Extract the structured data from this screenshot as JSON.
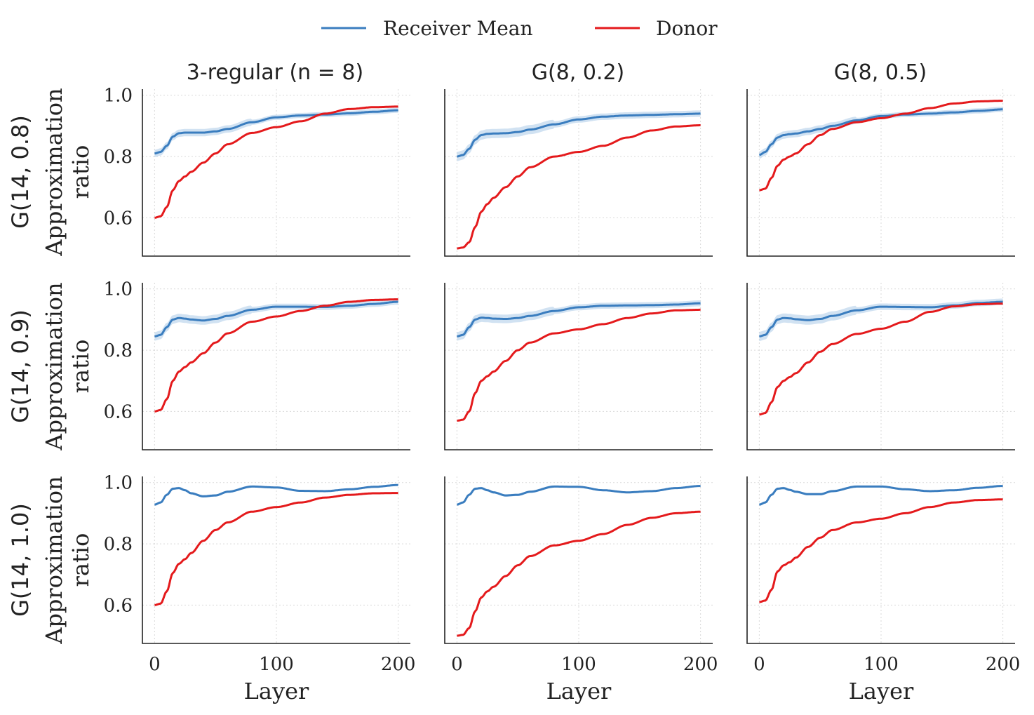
{
  "legend": {
    "position": "top-center",
    "items": [
      {
        "label": "Receiver Mean",
        "color": "#3a7dbf"
      },
      {
        "label": "Donor",
        "color": "#e41a1c"
      }
    ]
  },
  "colors": {
    "receiver": "#3a7dbf",
    "band": "#c6dbef",
    "donor": "#e41a1c"
  },
  "column_titles": [
    "3-regular (n = 8)",
    "G(8, 0.2)",
    "G(8, 0.5)"
  ],
  "row_labels": [
    "G(14, 0.8)",
    "G(14, 0.9)",
    "G(14, 1.0)"
  ],
  "ylabel_line1": "Approximation",
  "ylabel_line2": "ratio",
  "xlabel": "Layer",
  "chart_data": {
    "type": "line",
    "layout": "3x3 grid, shared x and y axes",
    "xlim": [
      -10,
      210
    ],
    "ylim": [
      0.475,
      1.02
    ],
    "xticks": [
      0,
      100,
      200
    ],
    "yticks": [
      0.6,
      0.8,
      1.0
    ],
    "grid": true,
    "panels": [
      {
        "row": 0,
        "col": 0,
        "receiver": {
          "x": [
            0,
            5,
            10,
            15,
            20,
            25,
            30,
            40,
            50,
            60,
            80,
            100,
            120,
            140,
            160,
            180,
            200
          ],
          "y": [
            0.81,
            0.815,
            0.835,
            0.865,
            0.876,
            0.878,
            0.878,
            0.878,
            0.882,
            0.89,
            0.912,
            0.928,
            0.934,
            0.937,
            0.941,
            0.946,
            0.951
          ],
          "band": 0.012
        },
        "donor": {
          "x": [
            0,
            5,
            10,
            15,
            20,
            25,
            30,
            40,
            50,
            60,
            80,
            100,
            120,
            140,
            160,
            180,
            200
          ],
          "y": [
            0.6,
            0.605,
            0.635,
            0.69,
            0.72,
            0.735,
            0.75,
            0.78,
            0.81,
            0.84,
            0.877,
            0.896,
            0.915,
            0.94,
            0.955,
            0.961,
            0.963
          ]
        }
      },
      {
        "row": 0,
        "col": 1,
        "receiver": {
          "x": [
            0,
            5,
            10,
            15,
            20,
            25,
            30,
            40,
            50,
            60,
            80,
            100,
            120,
            140,
            160,
            180,
            200
          ],
          "y": [
            0.8,
            0.805,
            0.825,
            0.855,
            0.87,
            0.874,
            0.875,
            0.876,
            0.88,
            0.888,
            0.905,
            0.921,
            0.93,
            0.934,
            0.936,
            0.938,
            0.94
          ],
          "band": 0.015
        },
        "donor": {
          "x": [
            0,
            5,
            10,
            15,
            20,
            25,
            30,
            40,
            50,
            60,
            80,
            100,
            120,
            140,
            160,
            180,
            200
          ],
          "y": [
            0.5,
            0.503,
            0.52,
            0.57,
            0.62,
            0.645,
            0.665,
            0.7,
            0.735,
            0.765,
            0.8,
            0.815,
            0.835,
            0.862,
            0.885,
            0.898,
            0.902
          ]
        }
      },
      {
        "row": 0,
        "col": 2,
        "receiver": {
          "x": [
            0,
            5,
            10,
            15,
            20,
            25,
            30,
            40,
            50,
            60,
            80,
            100,
            120,
            140,
            160,
            180,
            200
          ],
          "y": [
            0.805,
            0.815,
            0.84,
            0.862,
            0.87,
            0.873,
            0.875,
            0.882,
            0.89,
            0.9,
            0.918,
            0.932,
            0.937,
            0.94,
            0.944,
            0.949,
            0.954
          ],
          "band": 0.012
        },
        "donor": {
          "x": [
            0,
            5,
            10,
            15,
            20,
            25,
            30,
            40,
            50,
            60,
            80,
            100,
            120,
            140,
            160,
            180,
            200
          ],
          "y": [
            0.69,
            0.695,
            0.73,
            0.77,
            0.79,
            0.8,
            0.81,
            0.84,
            0.87,
            0.89,
            0.912,
            0.925,
            0.94,
            0.958,
            0.973,
            0.98,
            0.982
          ]
        }
      },
      {
        "row": 1,
        "col": 0,
        "receiver": {
          "x": [
            0,
            5,
            10,
            15,
            20,
            25,
            30,
            40,
            50,
            60,
            80,
            100,
            120,
            140,
            160,
            180,
            200
          ],
          "y": [
            0.845,
            0.85,
            0.875,
            0.9,
            0.905,
            0.903,
            0.9,
            0.897,
            0.902,
            0.912,
            0.932,
            0.942,
            0.942,
            0.941,
            0.945,
            0.951,
            0.958
          ],
          "band": 0.014
        },
        "donor": {
          "x": [
            0,
            5,
            10,
            15,
            20,
            25,
            30,
            40,
            50,
            60,
            80,
            100,
            120,
            140,
            160,
            180,
            200
          ],
          "y": [
            0.6,
            0.605,
            0.64,
            0.7,
            0.73,
            0.745,
            0.76,
            0.79,
            0.825,
            0.855,
            0.893,
            0.91,
            0.928,
            0.945,
            0.958,
            0.964,
            0.966
          ]
        }
      },
      {
        "row": 1,
        "col": 1,
        "receiver": {
          "x": [
            0,
            5,
            10,
            15,
            20,
            25,
            30,
            40,
            50,
            60,
            80,
            100,
            120,
            140,
            160,
            180,
            200
          ],
          "y": [
            0.845,
            0.85,
            0.875,
            0.9,
            0.906,
            0.905,
            0.903,
            0.902,
            0.905,
            0.912,
            0.928,
            0.94,
            0.945,
            0.946,
            0.947,
            0.949,
            0.953
          ],
          "band": 0.014
        },
        "donor": {
          "x": [
            0,
            5,
            10,
            15,
            20,
            25,
            30,
            40,
            50,
            60,
            80,
            100,
            120,
            140,
            160,
            180,
            200
          ],
          "y": [
            0.57,
            0.573,
            0.6,
            0.66,
            0.7,
            0.715,
            0.73,
            0.765,
            0.8,
            0.825,
            0.855,
            0.868,
            0.885,
            0.905,
            0.92,
            0.93,
            0.932
          ]
        }
      },
      {
        "row": 1,
        "col": 2,
        "receiver": {
          "x": [
            0,
            5,
            10,
            15,
            20,
            25,
            30,
            40,
            50,
            60,
            80,
            100,
            120,
            140,
            160,
            180,
            200
          ],
          "y": [
            0.845,
            0.85,
            0.875,
            0.9,
            0.905,
            0.904,
            0.901,
            0.898,
            0.902,
            0.912,
            0.93,
            0.942,
            0.941,
            0.94,
            0.946,
            0.954,
            0.958
          ],
          "band": 0.015
        },
        "donor": {
          "x": [
            0,
            5,
            10,
            15,
            20,
            25,
            30,
            40,
            50,
            60,
            80,
            100,
            120,
            140,
            160,
            180,
            200
          ],
          "y": [
            0.59,
            0.595,
            0.63,
            0.68,
            0.7,
            0.712,
            0.725,
            0.76,
            0.795,
            0.82,
            0.853,
            0.87,
            0.893,
            0.925,
            0.943,
            0.95,
            0.952
          ]
        }
      },
      {
        "row": 2,
        "col": 0,
        "receiver": {
          "x": [
            0,
            5,
            10,
            15,
            20,
            25,
            30,
            40,
            50,
            60,
            80,
            100,
            120,
            140,
            160,
            180,
            200
          ],
          "y": [
            0.928,
            0.935,
            0.96,
            0.98,
            0.982,
            0.975,
            0.965,
            0.955,
            0.958,
            0.97,
            0.987,
            0.984,
            0.973,
            0.972,
            0.978,
            0.986,
            0.992
          ],
          "band": 0.004
        },
        "donor": {
          "x": [
            0,
            5,
            10,
            15,
            20,
            25,
            30,
            40,
            50,
            60,
            80,
            100,
            120,
            140,
            160,
            180,
            200
          ],
          "y": [
            0.6,
            0.605,
            0.645,
            0.705,
            0.735,
            0.75,
            0.77,
            0.81,
            0.845,
            0.87,
            0.905,
            0.92,
            0.935,
            0.951,
            0.96,
            0.965,
            0.966
          ]
        }
      },
      {
        "row": 2,
        "col": 1,
        "receiver": {
          "x": [
            0,
            5,
            10,
            15,
            20,
            25,
            30,
            40,
            50,
            60,
            80,
            100,
            120,
            140,
            160,
            180,
            200
          ],
          "y": [
            0.928,
            0.935,
            0.96,
            0.98,
            0.982,
            0.975,
            0.968,
            0.958,
            0.96,
            0.97,
            0.987,
            0.986,
            0.975,
            0.968,
            0.972,
            0.982,
            0.989
          ],
          "band": 0.004
        },
        "donor": {
          "x": [
            0,
            5,
            10,
            15,
            20,
            25,
            30,
            40,
            50,
            60,
            80,
            100,
            120,
            140,
            160,
            180,
            200
          ],
          "y": [
            0.5,
            0.503,
            0.525,
            0.58,
            0.625,
            0.645,
            0.66,
            0.695,
            0.73,
            0.76,
            0.795,
            0.81,
            0.832,
            0.862,
            0.885,
            0.9,
            0.905
          ]
        }
      },
      {
        "row": 2,
        "col": 2,
        "receiver": {
          "x": [
            0,
            5,
            10,
            15,
            20,
            25,
            30,
            40,
            50,
            60,
            80,
            100,
            120,
            140,
            160,
            180,
            200
          ],
          "y": [
            0.928,
            0.935,
            0.96,
            0.98,
            0.982,
            0.976,
            0.97,
            0.962,
            0.962,
            0.972,
            0.987,
            0.987,
            0.978,
            0.972,
            0.975,
            0.983,
            0.989
          ],
          "band": 0.004
        },
        "donor": {
          "x": [
            0,
            5,
            10,
            15,
            20,
            25,
            30,
            40,
            50,
            60,
            80,
            100,
            120,
            140,
            160,
            180,
            200
          ],
          "y": [
            0.61,
            0.615,
            0.65,
            0.71,
            0.73,
            0.74,
            0.755,
            0.79,
            0.82,
            0.845,
            0.87,
            0.882,
            0.9,
            0.92,
            0.935,
            0.943,
            0.945
          ]
        }
      }
    ]
  }
}
